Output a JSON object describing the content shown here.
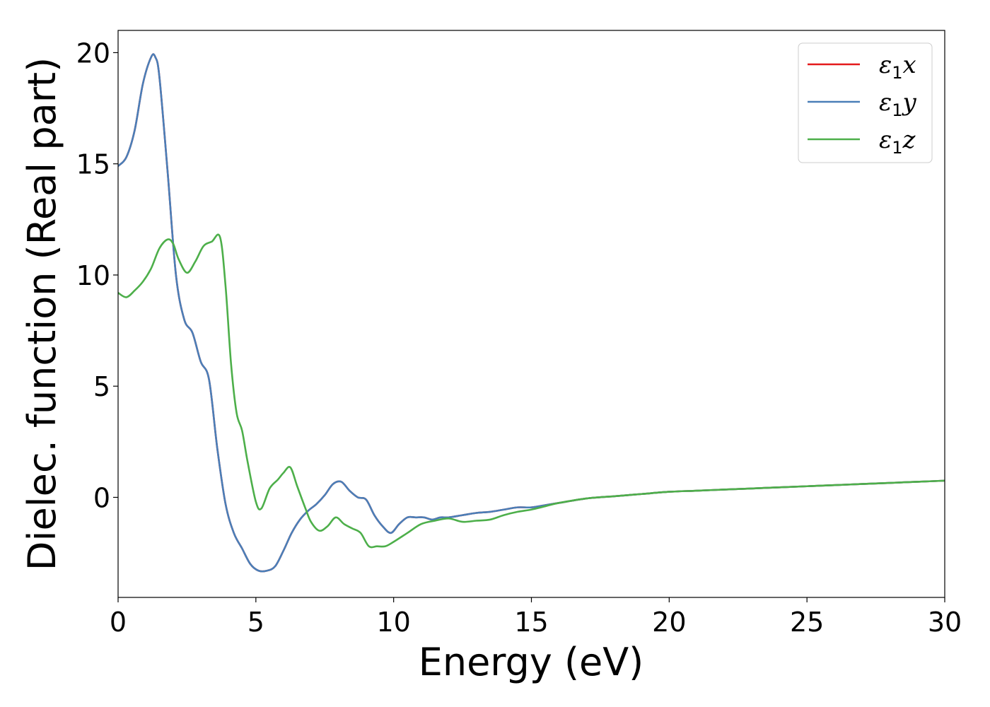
{
  "chart_data": {
    "type": "line",
    "title": "",
    "xlabel": "Energy (eV)",
    "ylabel": "Dielec. function (Real part)",
    "xlim": [
      0,
      30
    ],
    "ylim": [
      -4.5,
      21
    ],
    "xticks": [
      0,
      5,
      10,
      15,
      20,
      25,
      30
    ],
    "yticks": [
      0,
      5,
      10,
      15,
      20
    ],
    "grid": false,
    "legend_position": "top-right",
    "series": [
      {
        "name": "ε1x",
        "symbol": "ε",
        "subscript": "1",
        "axis": "x",
        "color": "#e41a1c",
        "x": [
          0,
          0.3,
          0.6,
          0.9,
          1.2,
          1.35,
          1.5,
          1.8,
          2.1,
          2.4,
          2.7,
          3.0,
          3.3,
          3.6,
          3.9,
          4.2,
          4.5,
          4.8,
          5.1,
          5.4,
          5.7,
          6.0,
          6.3,
          6.6,
          6.9,
          7.2,
          7.5,
          7.8,
          8.1,
          8.4,
          8.7,
          9.0,
          9.3,
          9.6,
          9.9,
          10.2,
          10.5,
          10.8,
          11.1,
          11.4,
          11.7,
          12.0,
          12.5,
          13.0,
          13.5,
          14.0,
          14.5,
          15.0,
          15.5,
          16.0,
          17.0,
          18.0,
          19.0,
          20.0,
          21.0,
          22.0,
          23.0,
          24.0,
          25.0,
          26.0,
          27.0,
          28.0,
          29.0,
          30.0
        ],
        "values": [
          14.9,
          15.3,
          16.5,
          18.6,
          19.8,
          19.8,
          18.9,
          14.6,
          10.0,
          8.0,
          7.4,
          6.1,
          5.3,
          2.2,
          -0.3,
          -1.6,
          -2.3,
          -3.0,
          -3.3,
          -3.3,
          -3.1,
          -2.4,
          -1.6,
          -1.0,
          -0.6,
          -0.3,
          0.1,
          0.6,
          0.7,
          0.3,
          0.0,
          -0.1,
          -0.8,
          -1.3,
          -1.6,
          -1.2,
          -0.9,
          -0.9,
          -0.9,
          -1.0,
          -0.9,
          -0.9,
          -0.8,
          -0.7,
          -0.65,
          -0.55,
          -0.45,
          -0.45,
          -0.35,
          -0.25,
          -0.05,
          0.05,
          0.15,
          0.25,
          0.3,
          0.35,
          0.4,
          0.45,
          0.5,
          0.55,
          0.6,
          0.65,
          0.7,
          0.75
        ]
      },
      {
        "name": "ε1y",
        "symbol": "ε",
        "subscript": "1",
        "axis": "y",
        "color": "#4a7fb8",
        "x": [
          0,
          0.3,
          0.6,
          0.9,
          1.2,
          1.35,
          1.5,
          1.8,
          2.1,
          2.4,
          2.7,
          3.0,
          3.3,
          3.6,
          3.9,
          4.2,
          4.5,
          4.8,
          5.1,
          5.4,
          5.7,
          6.0,
          6.3,
          6.6,
          6.9,
          7.2,
          7.5,
          7.8,
          8.1,
          8.4,
          8.7,
          9.0,
          9.3,
          9.6,
          9.9,
          10.2,
          10.5,
          10.8,
          11.1,
          11.4,
          11.7,
          12.0,
          12.5,
          13.0,
          13.5,
          14.0,
          14.5,
          15.0,
          15.5,
          16.0,
          17.0,
          18.0,
          19.0,
          20.0,
          21.0,
          22.0,
          23.0,
          24.0,
          25.0,
          26.0,
          27.0,
          28.0,
          29.0,
          30.0
        ],
        "values": [
          14.9,
          15.3,
          16.5,
          18.6,
          19.8,
          19.8,
          18.9,
          14.6,
          10.0,
          8.0,
          7.4,
          6.1,
          5.3,
          2.2,
          -0.3,
          -1.6,
          -2.3,
          -3.0,
          -3.3,
          -3.3,
          -3.1,
          -2.4,
          -1.6,
          -1.0,
          -0.6,
          -0.3,
          0.1,
          0.6,
          0.7,
          0.3,
          0.0,
          -0.1,
          -0.8,
          -1.3,
          -1.6,
          -1.2,
          -0.9,
          -0.9,
          -0.9,
          -1.0,
          -0.9,
          -0.9,
          -0.8,
          -0.7,
          -0.65,
          -0.55,
          -0.45,
          -0.45,
          -0.35,
          -0.25,
          -0.05,
          0.05,
          0.15,
          0.25,
          0.3,
          0.35,
          0.4,
          0.45,
          0.5,
          0.55,
          0.6,
          0.65,
          0.7,
          0.75
        ]
      },
      {
        "name": "ε1z",
        "symbol": "ε",
        "subscript": "1",
        "axis": "z",
        "color": "#4daf4a",
        "x": [
          0,
          0.3,
          0.6,
          0.9,
          1.2,
          1.5,
          1.8,
          2.0,
          2.2,
          2.5,
          2.8,
          3.1,
          3.4,
          3.7,
          3.9,
          4.1,
          4.3,
          4.5,
          4.7,
          5.0,
          5.2,
          5.5,
          5.8,
          6.0,
          6.25,
          6.5,
          6.8,
          7.0,
          7.3,
          7.6,
          7.9,
          8.2,
          8.5,
          8.8,
          9.1,
          9.4,
          9.7,
          10.0,
          10.5,
          11.0,
          11.5,
          12.0,
          12.5,
          13.0,
          13.5,
          14.0,
          14.5,
          15.0,
          15.5,
          16.0,
          17.0,
          18.0,
          19.0,
          20.0,
          21.0,
          22.0,
          23.0,
          24.0,
          25.0,
          26.0,
          27.0,
          28.0,
          29.0,
          30.0
        ],
        "values": [
          9.2,
          9.0,
          9.3,
          9.7,
          10.3,
          11.2,
          11.6,
          11.4,
          10.7,
          10.1,
          10.6,
          11.3,
          11.5,
          11.7,
          9.5,
          6.0,
          3.8,
          3.0,
          1.6,
          -0.2,
          -0.5,
          0.4,
          0.8,
          1.1,
          1.35,
          0.5,
          -0.5,
          -1.1,
          -1.5,
          -1.3,
          -0.9,
          -1.2,
          -1.4,
          -1.6,
          -2.2,
          -2.2,
          -2.2,
          -2.0,
          -1.6,
          -1.2,
          -1.05,
          -0.95,
          -1.1,
          -1.05,
          -1.0,
          -0.8,
          -0.65,
          -0.55,
          -0.4,
          -0.25,
          -0.05,
          0.05,
          0.15,
          0.25,
          0.3,
          0.35,
          0.4,
          0.45,
          0.5,
          0.55,
          0.6,
          0.65,
          0.7,
          0.75
        ]
      }
    ]
  }
}
